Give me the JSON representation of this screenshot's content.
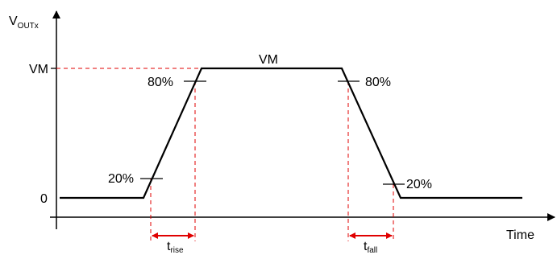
{
  "labels": {
    "y_axis_main": "V",
    "y_axis_sub": "OUTx",
    "vm_level": "VM",
    "vm_plateau": "VM",
    "zero_level": "0",
    "rise_80": "80%",
    "rise_20": "20%",
    "fall_80": "80%",
    "fall_20": "20%",
    "x_axis": "Time",
    "t_rise_main": "t",
    "t_rise_sub": "rise",
    "t_fall_main": "t",
    "t_fall_sub": "fall"
  },
  "colors": {
    "waveform": "#000000",
    "axes": "#000000",
    "guides": "#e00000",
    "arrows": "#e00000"
  }
}
